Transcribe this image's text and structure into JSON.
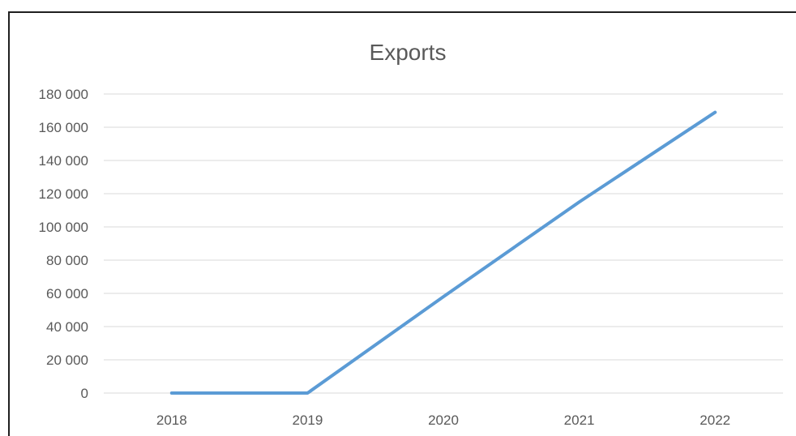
{
  "chart_data": {
    "type": "line",
    "title": "Exports",
    "xlabel": "",
    "ylabel": "",
    "categories": [
      "2018",
      "2019",
      "2020",
      "2021",
      "2022"
    ],
    "series": [
      {
        "values": [
          0,
          0,
          58000,
          115000,
          169000
        ]
      }
    ],
    "ylim": [
      0,
      180000
    ],
    "yticks": [
      "0",
      "20 000",
      "40 000",
      "60 000",
      "80 000",
      "100 000",
      "120 000",
      "140 000",
      "160 000",
      "180 000"
    ],
    "ytick_values": [
      0,
      20000,
      40000,
      60000,
      80000,
      100000,
      120000,
      140000,
      160000,
      180000
    ],
    "grid": true,
    "legend": "none",
    "line_color": "#5b9bd5"
  }
}
